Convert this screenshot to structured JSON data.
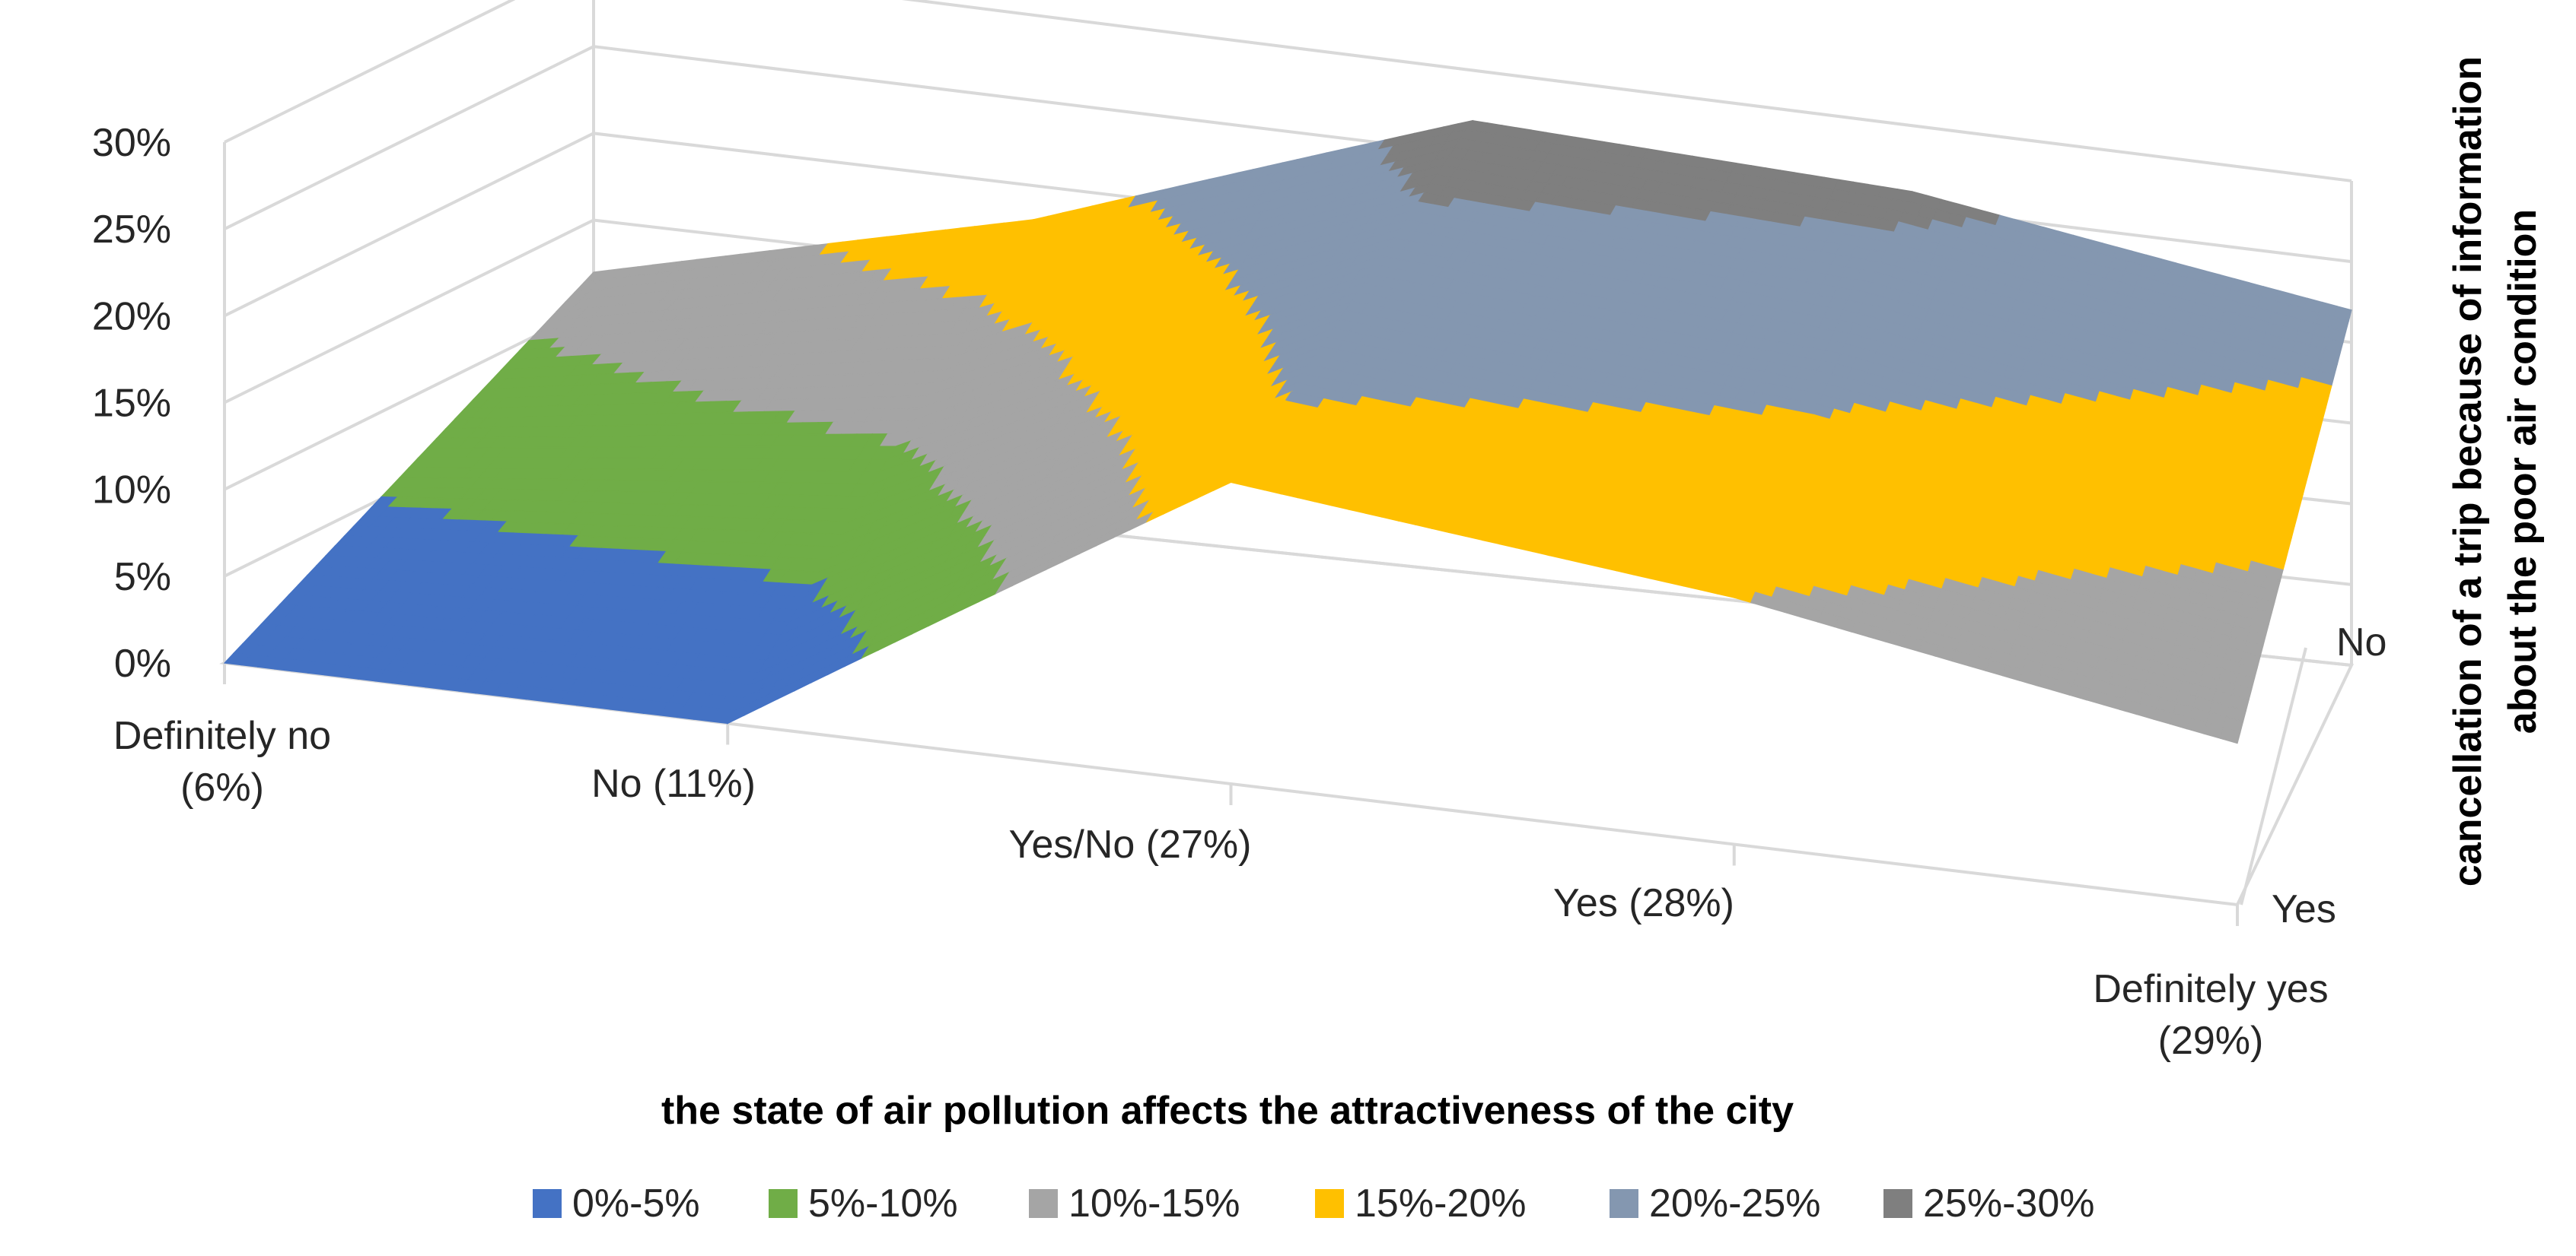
{
  "chart_data": {
    "type": "surface",
    "x_title": "the state of air pollution affects the attractiveness of the city",
    "z_title": [
      "cancellation of a trip because of information",
      "about the poor air condition"
    ],
    "categories": [
      [
        "Definitely no",
        "(6%)"
      ],
      [
        "No (11%)"
      ],
      [
        "Yes/No (27%)"
      ],
      [
        "Yes (28%)"
      ],
      [
        "Definitely yes",
        "(29%)"
      ]
    ],
    "series_axis": [
      "No",
      "Yes"
    ],
    "y_ticks": [
      "0%",
      "5%",
      "10%",
      "15%",
      "20%",
      "25%",
      "30%"
    ],
    "ylim": [
      0,
      30
    ],
    "surface_values": {
      "No": [
        12,
        18,
        27,
        26,
        22
      ],
      "Yes": [
        0,
        0,
        18,
        15,
        10
      ]
    },
    "legend": [
      {
        "label": "0%-5%",
        "color": "#4472C4"
      },
      {
        "label": "5%-10%",
        "color": "#70AD47"
      },
      {
        "label": "10%-15%",
        "color": "#A5A5A5"
      },
      {
        "label": "15%-20%",
        "color": "#FFC000"
      },
      {
        "label": "20%-25%",
        "color": "#8497B0"
      },
      {
        "label": "25%-30%",
        "color": "#7F7F7F"
      }
    ]
  }
}
